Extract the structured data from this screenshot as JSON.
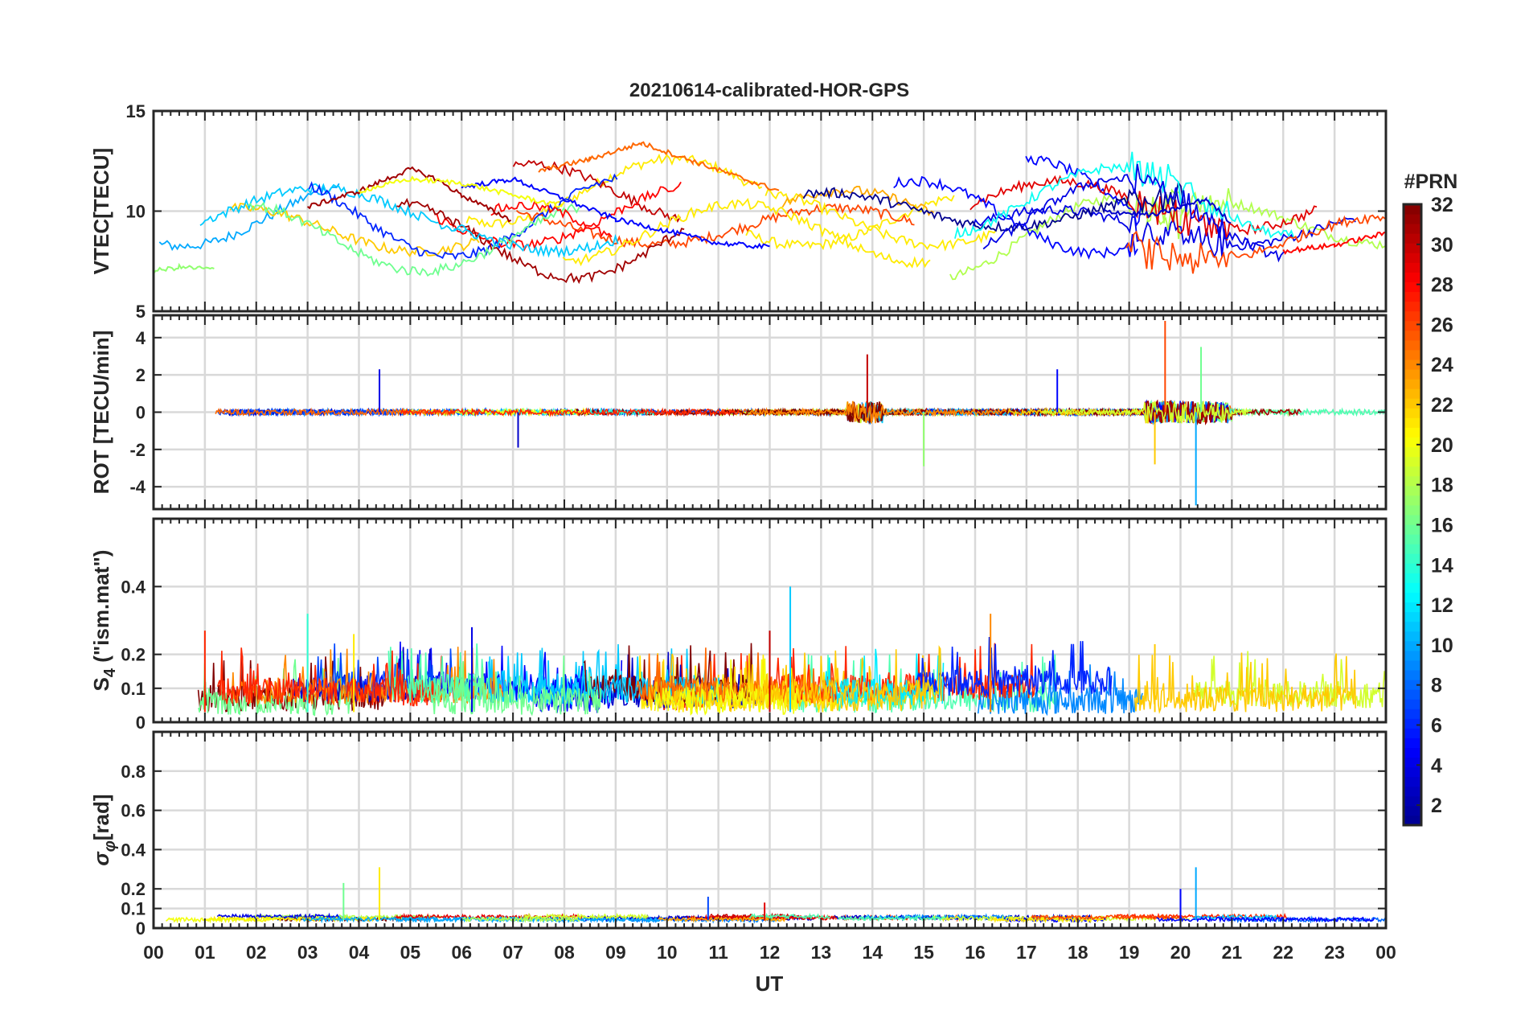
{
  "chart_data": {
    "type": "line",
    "title": "20210614-calibrated-HOR-GPS",
    "xlabel": "UT",
    "x_tick_labels": [
      "00",
      "01",
      "02",
      "03",
      "04",
      "05",
      "06",
      "07",
      "08",
      "09",
      "10",
      "11",
      "12",
      "13",
      "14",
      "15",
      "16",
      "17",
      "18",
      "19",
      "20",
      "21",
      "22",
      "23",
      "00"
    ],
    "xlim": [
      0,
      24
    ],
    "grid": true,
    "colorbar": {
      "title": "#PRN",
      "range": [
        1,
        32
      ],
      "ticks": [
        2,
        4,
        6,
        8,
        10,
        12,
        14,
        16,
        18,
        20,
        22,
        24,
        26,
        28,
        30,
        32
      ],
      "tick_labels": [
        "2",
        "4",
        "6",
        "8",
        "10",
        "12",
        "14",
        "16",
        "18",
        "20",
        "22",
        "24",
        "26",
        "28",
        "30",
        "32"
      ],
      "colormap": "jet",
      "stops": [
        "#00008f",
        "#0000ff",
        "#0080ff",
        "#00ffff",
        "#80ff80",
        "#ffff00",
        "#ff8000",
        "#ff0000",
        "#800000"
      ]
    },
    "panels": [
      {
        "id": "vtec",
        "ylabel": "VTEC[TECU]",
        "ylim": [
          5,
          15
        ],
        "yticks": [
          5,
          10,
          15
        ],
        "ytick_labels": [
          "5",
          "10",
          "15"
        ],
        "series_description": "VTEC per satellite, mostly 7-13 TECU, peak ~13.4 near 09:30 UT",
        "series": [
          {
            "prn": 25,
            "x": [
              7.5,
              8.5,
              9.5,
              10.5,
              11.5,
              12.2
            ],
            "y": [
              12.0,
              12.6,
              13.4,
              12.5,
              11.6,
              11.0
            ]
          },
          {
            "prn": 31,
            "x": [
              3.0,
              4.0,
              5.0,
              5.5,
              6.0,
              7.0
            ],
            "y": [
              10.2,
              11.0,
              12.1,
              11.6,
              10.8,
              9.5
            ]
          },
          {
            "prn": 5,
            "x": [
              6.0,
              7.0,
              8.0,
              9.0,
              10.0,
              11.0,
              12.0
            ],
            "y": [
              11.2,
              11.6,
              10.6,
              9.6,
              9.0,
              8.4,
              8.2
            ]
          },
          {
            "prn": 20,
            "x": [
              4.0,
              5.0,
              6.0,
              7.0,
              8.0
            ],
            "y": [
              11.0,
              11.6,
              11.4,
              10.8,
              10.2
            ]
          },
          {
            "prn": 17,
            "x": [
              0.0,
              0.5,
              1.2
            ],
            "y": [
              7.0,
              7.2,
              7.1
            ]
          },
          {
            "prn": 3,
            "x": [
              18.5,
              19.5,
              20.5,
              21.0
            ],
            "y": [
              10.0,
              9.8,
              10.6,
              9.4
            ]
          },
          {
            "prn": 28,
            "x": [
              22.0,
              23.0,
              24.0
            ],
            "y": [
              8.0,
              8.3,
              8.9
            ]
          }
        ]
      },
      {
        "id": "rot",
        "ylabel": "ROT [TECU/min]",
        "ylim": [
          -5.2,
          5.2
        ],
        "yticks": [
          -4,
          -2,
          0,
          2,
          4
        ],
        "ytick_labels": [
          "-4",
          "-2",
          "0",
          "2",
          "4"
        ],
        "series_description": "ROT near 0, spikes up to ~5 and down to ~-5 near 20 UT",
        "spikes": [
          {
            "prn": 4,
            "x": 4.4,
            "y": 2.3
          },
          {
            "prn": 26,
            "x": 19.7,
            "y": 4.9
          },
          {
            "prn": 10,
            "x": 20.3,
            "y": -5.0
          },
          {
            "prn": 30,
            "x": 13.9,
            "y": 3.1
          },
          {
            "prn": 17,
            "x": 15.0,
            "y": -2.9
          },
          {
            "prn": 16,
            "x": 20.4,
            "y": 3.5
          },
          {
            "prn": 22,
            "x": 19.5,
            "y": -2.8
          },
          {
            "prn": 3,
            "x": 7.1,
            "y": -1.9
          },
          {
            "prn": 5,
            "x": 17.6,
            "y": 2.3
          }
        ]
      },
      {
        "id": "s4",
        "ylabel_main": "S",
        "ylabel_sub": "4",
        "ylabel_rest": " (\"ism.mat\")",
        "ylim": [
          0,
          0.6
        ],
        "yticks": [
          0,
          0.1,
          0.2,
          0.4
        ],
        "ytick_labels": [
          "0",
          "0.1",
          "0.2",
          "0.4"
        ],
        "series_description": "S4 mostly 0-0.1, peaks ~0.4 near 12.4 UT and ~0.32 near 16.3 UT",
        "spikes": [
          {
            "prn": 11,
            "x": 12.4,
            "y": 0.4
          },
          {
            "prn": 24,
            "x": 16.3,
            "y": 0.32
          },
          {
            "prn": 14,
            "x": 3.0,
            "y": 0.32
          },
          {
            "prn": 27,
            "x": 1.0,
            "y": 0.27
          },
          {
            "prn": 4,
            "x": 6.2,
            "y": 0.28
          },
          {
            "prn": 30,
            "x": 12.0,
            "y": 0.27
          },
          {
            "prn": 22,
            "x": 19.5,
            "y": 0.23
          },
          {
            "prn": 21,
            "x": 3.9,
            "y": 0.26
          }
        ]
      },
      {
        "id": "sigma",
        "ylabel_main": "σ",
        "ylabel_sub": "φ",
        "ylabel_rest": "[rad]",
        "ylim": [
          0,
          1
        ],
        "yticks": [
          0,
          0.1,
          0.2,
          0.4,
          0.6,
          0.8
        ],
        "ytick_labels": [
          "0",
          "0.1",
          "0.2",
          "0.4",
          "0.6",
          "0.8"
        ],
        "series_description": "sigma-phi mostly ~0.05, peaks ~0.31 near 4.4 UT and 20.3 UT",
        "spikes": [
          {
            "prn": 21,
            "x": 4.4,
            "y": 0.31
          },
          {
            "prn": 10,
            "x": 20.3,
            "y": 0.31
          },
          {
            "prn": 16,
            "x": 3.7,
            "y": 0.23
          },
          {
            "prn": 5,
            "x": 20.0,
            "y": 0.2
          },
          {
            "prn": 7,
            "x": 10.8,
            "y": 0.16
          },
          {
            "prn": 29,
            "x": 11.9,
            "y": 0.13
          }
        ]
      }
    ]
  }
}
